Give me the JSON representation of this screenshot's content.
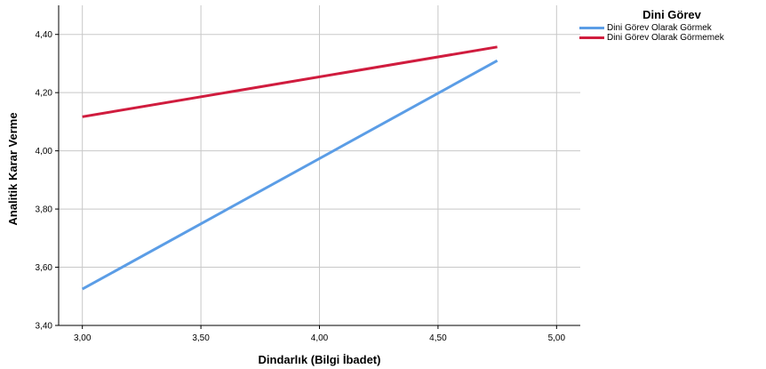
{
  "chart_data": {
    "type": "line",
    "title": "",
    "xlabel": "Dindarlık (Bilgi İbadet)",
    "ylabel": "Analitik Karar Verme",
    "xlim": [
      2.9,
      5.1
    ],
    "ylim": [
      3.4,
      4.5
    ],
    "x_ticks": [
      "3,00",
      "3,50",
      "4,00",
      "4,50",
      "5,00"
    ],
    "x_tick_values": [
      3.0,
      3.5,
      4.0,
      4.5,
      5.0
    ],
    "y_ticks": [
      "3,40",
      "3,60",
      "3,80",
      "4,00",
      "4,20",
      "4,40"
    ],
    "y_tick_values": [
      3.4,
      3.6,
      3.8,
      4.0,
      4.2,
      4.4
    ],
    "grid": true,
    "legend_title": "Dini Görev",
    "legend_position": "top-right",
    "series": [
      {
        "name": "Dini Görev Olarak Görmek",
        "color": "#5b9de6",
        "x": [
          3.0,
          4.75
        ],
        "y": [
          3.525,
          4.31
        ]
      },
      {
        "name": "Dini Görev Olarak Görmemek",
        "color": "#d01c3e",
        "x": [
          3.0,
          4.75
        ],
        "y": [
          4.117,
          4.357
        ]
      }
    ]
  }
}
